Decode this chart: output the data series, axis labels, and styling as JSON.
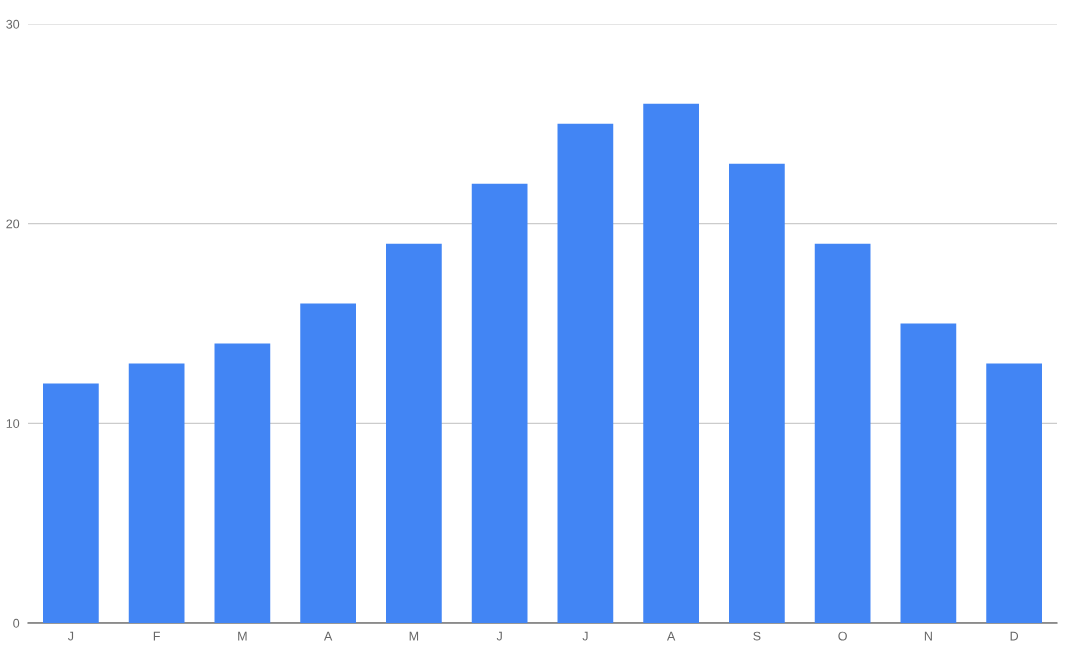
{
  "chart_data": {
    "type": "bar",
    "categories": [
      "J",
      "F",
      "M",
      "A",
      "M",
      "J",
      "J",
      "A",
      "S",
      "O",
      "N",
      "D"
    ],
    "values": [
      12,
      13,
      14,
      16,
      19,
      22,
      25,
      26,
      23,
      19,
      15,
      13
    ],
    "color": "#4285f4",
    "ylim": [
      0,
      30
    ],
    "yticks": [
      0,
      10,
      20,
      30
    ],
    "grid": "y",
    "legend": false
  }
}
